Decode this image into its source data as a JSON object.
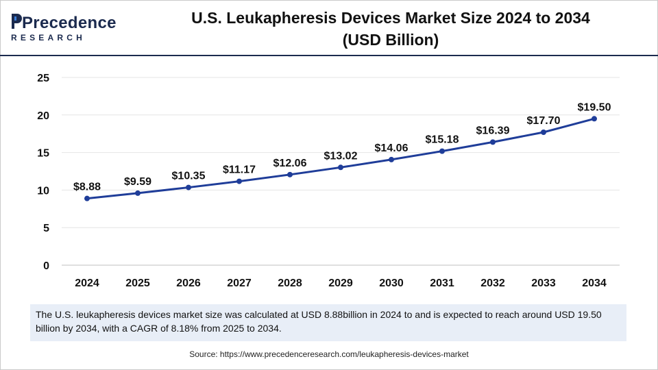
{
  "brand": {
    "name": "Precedence",
    "sub": "RESEARCH"
  },
  "title_line1": "U.S. Leukapheresis Devices Market Size 2024 to 2034",
  "title_line2": "(USD Billion)",
  "chart_data": {
    "type": "line",
    "title": "U.S. Leukapheresis Devices Market Size 2024 to 2034 (USD Billion)",
    "xlabel": "",
    "ylabel": "",
    "categories": [
      "2024",
      "2025",
      "2026",
      "2027",
      "2028",
      "2029",
      "2030",
      "2031",
      "2032",
      "2033",
      "2034"
    ],
    "values": [
      8.88,
      9.59,
      10.35,
      11.17,
      12.06,
      13.02,
      14.06,
      15.18,
      16.39,
      17.7,
      19.5
    ],
    "labels": [
      "$8.88",
      "$9.59",
      "$10.35",
      "$11.17",
      "$12.06",
      "$13.02",
      "$14.06",
      "$15.18",
      "$16.39",
      "$17.70",
      "$19.50"
    ],
    "yticks": [
      "0",
      "5",
      "10",
      "15",
      "20",
      "25"
    ],
    "ylim": [
      0,
      25
    ],
    "grid": true,
    "line_color": "#1f3d99"
  },
  "description": "The U.S. leukapheresis devices market  size was calculated at USD 8.88billion in 2024 to and is expected to reach around USD 19.50 billion by 2034, with a CAGR of 8.18% from 2025 to 2034.",
  "source": "Source: https://www.precedenceresearch.com/leukapheresis-devices-market"
}
